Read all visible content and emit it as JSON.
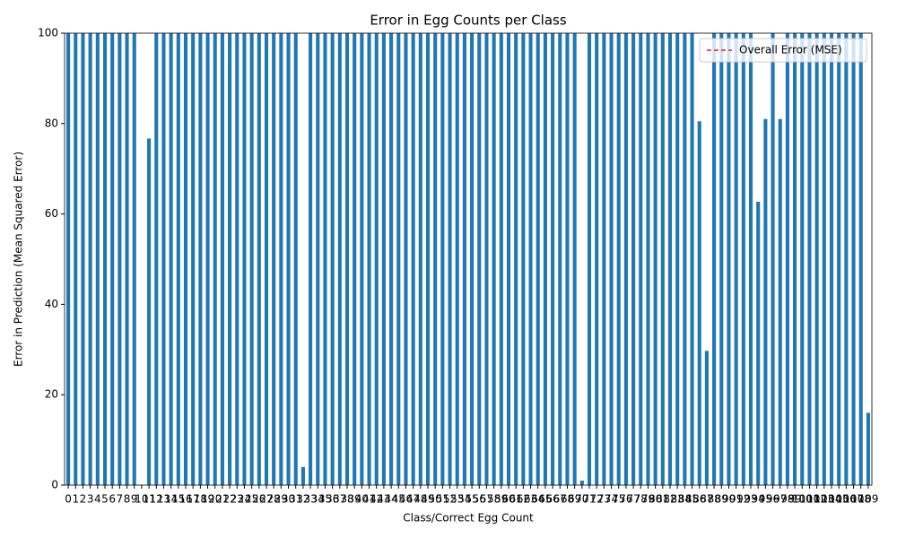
{
  "chart_data": {
    "type": "bar",
    "title": "Error in Egg Counts per Class",
    "x_label": "Class/Correct Egg Count",
    "y_label": "Error in Prediction (Mean Squared Error)",
    "categories": [
      "0",
      "1",
      "2",
      "3",
      "4",
      "5",
      "6",
      "7",
      "8",
      "9",
      "10",
      "11",
      "12",
      "13",
      "14",
      "15",
      "16",
      "17",
      "18",
      "19",
      "20",
      "21",
      "22",
      "23",
      "24",
      "25",
      "26",
      "27",
      "28",
      "29",
      "30",
      "31",
      "32",
      "33",
      "34",
      "35",
      "36",
      "37",
      "38",
      "39",
      "40",
      "41",
      "42",
      "43",
      "44",
      "45",
      "46",
      "47",
      "48",
      "49",
      "50",
      "51",
      "52",
      "53",
      "54",
      "55",
      "56",
      "57",
      "58",
      "59",
      "60",
      "61",
      "62",
      "63",
      "64",
      "65",
      "66",
      "67",
      "68",
      "69",
      "70",
      "71",
      "72",
      "73",
      "74",
      "75",
      "76",
      "77",
      "78",
      "79",
      "80",
      "81",
      "82",
      "83",
      "84",
      "85",
      "86",
      "87",
      "88",
      "89",
      "90",
      "91",
      "92",
      "93",
      "94",
      "95",
      "96",
      "97",
      "98",
      "99",
      "100",
      "101",
      "102",
      "103",
      "104",
      "105",
      "106",
      "107",
      "108",
      "109"
    ],
    "values": [
      100,
      100,
      100,
      100,
      100,
      100,
      100,
      100,
      100,
      100,
      0,
      76.7,
      100,
      100,
      100,
      100,
      100,
      100,
      100,
      100,
      100,
      100,
      100,
      100,
      100,
      100,
      100,
      100,
      100,
      100,
      100,
      100,
      4,
      100,
      100,
      100,
      100,
      100,
      100,
      100,
      100,
      100,
      100,
      100,
      100,
      100,
      100,
      100,
      100,
      100,
      100,
      100,
      100,
      100,
      100,
      100,
      100,
      100,
      100,
      100,
      100,
      100,
      100,
      100,
      100,
      100,
      100,
      100,
      100,
      100,
      1,
      100,
      100,
      100,
      100,
      100,
      100,
      100,
      100,
      100,
      100,
      100,
      100,
      100,
      100,
      100,
      80.5,
      29.7,
      100,
      100,
      100,
      100,
      100,
      100,
      62.7,
      81,
      100,
      81,
      100,
      100,
      100,
      100,
      100,
      100,
      100,
      100,
      100,
      100,
      100,
      16
    ],
    "color": "#1f77b4",
    "ylim": [
      0,
      100
    ],
    "yticks": [
      0,
      20,
      40,
      60,
      80,
      100
    ],
    "legend": {
      "name": "Overall Error (MSE)",
      "color": "#d62728",
      "position": "upper right"
    }
  }
}
